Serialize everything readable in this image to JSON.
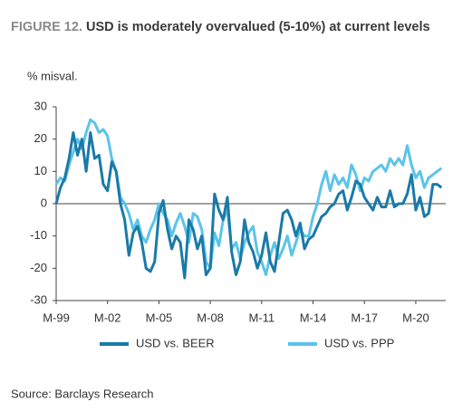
{
  "chart_data": {
    "type": "line",
    "figure_label": "FIGURE 12.",
    "title": "USD is moderately overvalued (5-10%) at current levels",
    "ylabel": "% misval.",
    "source": "Source: Barclays Research",
    "x": [
      0,
      1,
      2,
      3,
      4,
      5,
      6,
      7,
      8,
      9,
      10,
      11,
      12,
      13,
      14,
      15,
      16,
      17,
      18,
      19,
      20,
      21,
      22,
      23,
      24,
      25,
      26,
      27,
      28,
      29,
      30,
      31,
      32,
      33,
      34,
      35,
      36,
      37,
      38,
      39,
      40,
      41,
      42,
      43,
      44,
      45,
      46,
      47,
      48,
      49,
      50,
      51,
      52,
      53,
      54,
      55,
      56,
      57,
      58,
      59,
      60,
      61,
      62,
      63,
      64,
      65,
      66,
      67,
      68,
      69,
      70,
      71,
      72,
      73,
      74,
      75,
      76,
      77,
      78,
      79,
      80,
      81,
      82,
      83,
      84,
      85,
      86,
      87,
      88,
      89,
      90
    ],
    "xlim": [
      0,
      91
    ],
    "xticks": [
      {
        "value": 0,
        "label": "M-99"
      },
      {
        "value": 12,
        "label": "M-02"
      },
      {
        "value": 24,
        "label": "M-05"
      },
      {
        "value": 36,
        "label": "M-08"
      },
      {
        "value": 48,
        "label": "M-11"
      },
      {
        "value": 60,
        "label": "M-14"
      },
      {
        "value": 72,
        "label": "M-17"
      },
      {
        "value": 84,
        "label": "M-20"
      }
    ],
    "ylim": [
      -30,
      30
    ],
    "yticks": [
      -30,
      -20,
      -10,
      0,
      10,
      20,
      30
    ],
    "series": [
      {
        "name": "USD vs. BEER",
        "color": "#1a7aa8",
        "values": [
          0,
          5,
          8,
          14,
          22,
          15,
          20,
          10,
          22,
          14,
          15,
          6,
          4,
          13,
          10,
          0,
          -5,
          -16,
          -9,
          -7,
          -12,
          -20,
          -21,
          -18,
          -3,
          1,
          -8,
          -14,
          -10,
          -12,
          -23,
          -5,
          -8,
          -14,
          -10,
          -22,
          -20,
          3,
          -2,
          -5,
          2,
          -15,
          -22,
          -18,
          -5,
          -12,
          -15,
          -20,
          -16,
          -9,
          -18,
          -21,
          -12,
          -3,
          -2,
          -5,
          -10,
          -6,
          -14,
          -11,
          -10,
          -7,
          -4,
          -3,
          -1,
          0,
          3,
          4,
          -2,
          2,
          7,
          6,
          2,
          0,
          -2,
          2,
          -1,
          -1,
          4,
          -1,
          0,
          0,
          3,
          9,
          -2,
          2,
          -4,
          -3,
          6,
          6,
          5
        ]
      },
      {
        "name": "USD vs. PPP",
        "color": "#5bc4e8",
        "values": [
          6,
          8,
          7,
          12,
          16,
          20,
          17,
          22,
          26,
          25,
          22,
          23,
          21,
          14,
          10,
          2,
          0,
          -3,
          -8,
          -5,
          -10,
          -12,
          -8,
          -5,
          0,
          -3,
          -5,
          -10,
          -6,
          -3,
          -7,
          -12,
          -3,
          -4,
          -8,
          -18,
          -20,
          -9,
          -13,
          -5,
          -2,
          -14,
          -12,
          -17,
          -12,
          -9,
          -7,
          -15,
          -18,
          -22,
          -16,
          -12,
          -17,
          -14,
          -10,
          -16,
          -12,
          -8,
          -10,
          -10,
          -4,
          0,
          6,
          10,
          4,
          9,
          6,
          8,
          5,
          12,
          9,
          4,
          8,
          7,
          10,
          11,
          12,
          10,
          14,
          12,
          14,
          12,
          18,
          12,
          8,
          10,
          5,
          8,
          9,
          10,
          11
        ]
      }
    ]
  }
}
